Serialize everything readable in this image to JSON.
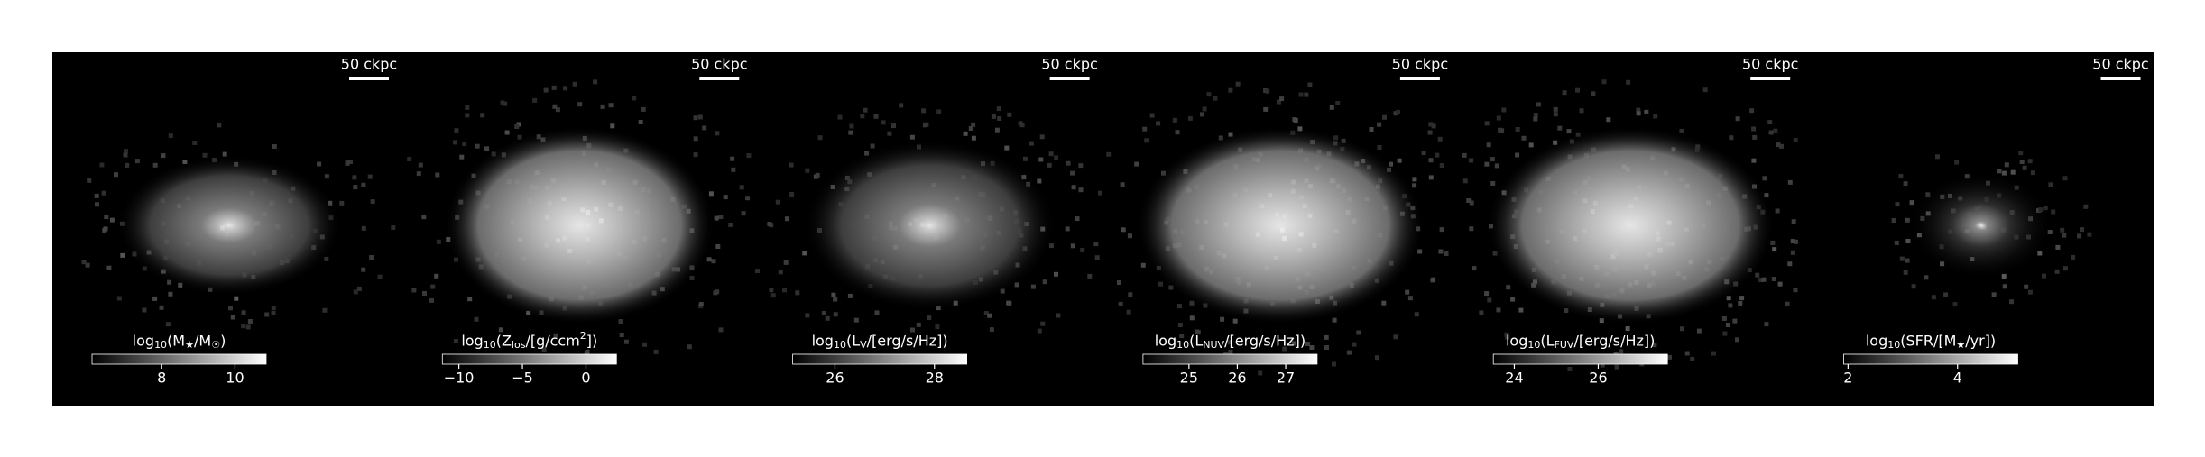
{
  "chart_data": [
    {
      "type": "image",
      "scale_label": "50 ckpc",
      "colorbar": {
        "label": "log_{10}(M_{★}/M_{☉})",
        "xlim": [
          6.1,
          10.85
        ],
        "xticks": [
          8,
          10
        ]
      }
    },
    {
      "type": "image",
      "scale_label": "50 ckpc",
      "colorbar": {
        "label": "log_{10}(Z_{los}/[g/ccm^{2}])",
        "xlim": [
          -11.3,
          2.4
        ],
        "xticks": [
          {
            "value": -10,
            "label": "−10"
          },
          {
            "value": -5,
            "label": "−5"
          },
          0
        ]
      }
    },
    {
      "type": "image",
      "scale_label": "50 ckpc",
      "colorbar": {
        "label": "log_{10}(L_{V}/[erg/s/Hz])",
        "xlim": [
          25.15,
          28.65
        ],
        "xticks": [
          26,
          28
        ]
      }
    },
    {
      "type": "image",
      "scale_label": "50 ckpc",
      "colorbar": {
        "label": "log_{10}(L_{NUV}/[erg/s/Hz])",
        "xlim": [
          24.05,
          27.65
        ],
        "xticks": [
          25,
          26,
          27
        ]
      }
    },
    {
      "type": "image",
      "scale_label": "50 ckpc",
      "colorbar": {
        "label": "log_{10}(L_{FUV}/[erg/s/Hz])",
        "xlim": [
          23.5,
          27.65
        ],
        "xticks": [
          24,
          26
        ]
      }
    },
    {
      "type": "image",
      "scale_label": "50 ckpc",
      "colorbar": {
        "label": "log_{10}(SFR/[M_{★}/yr])",
        "xlim": [
          1.92,
          5.1
        ],
        "xticks": [
          2,
          4
        ]
      }
    }
  ]
}
